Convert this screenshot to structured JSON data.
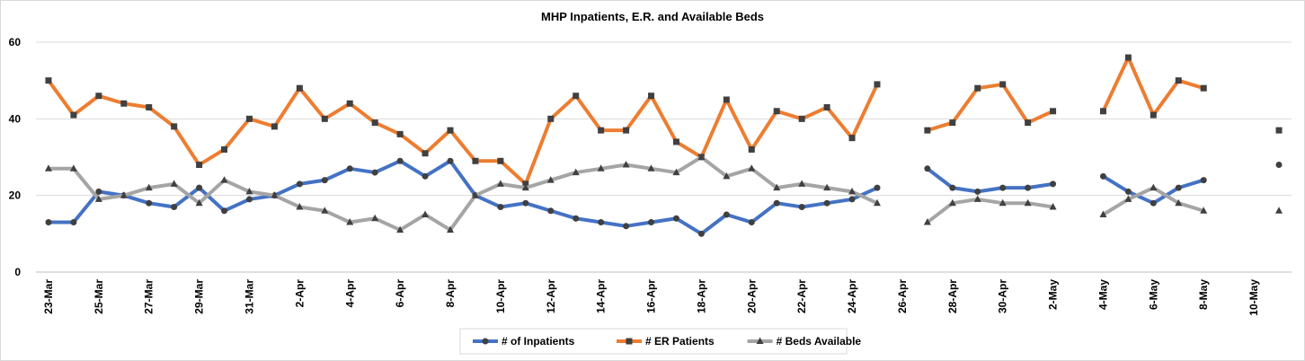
{
  "chart_data": {
    "type": "line",
    "title": "MHP Inpatients, E.R. and Available Beds",
    "xlabel": "",
    "ylabel": "",
    "ylim": [
      0,
      60
    ],
    "yticks": [
      "0",
      "20",
      "40",
      "60"
    ],
    "grid": true,
    "legend_position": "bottom",
    "tick_labels": [
      "23-Mar",
      "25-Mar",
      "27-Mar",
      "29-Mar",
      "31-Mar",
      "2-Apr",
      "4-Apr",
      "6-Apr",
      "8-Apr",
      "10-Apr",
      "12-Apr",
      "14-Apr",
      "16-Apr",
      "18-Apr",
      "20-Apr",
      "22-Apr",
      "24-Apr",
      "26-Apr",
      "28-Apr",
      "30-Apr",
      "2-May",
      "4-May",
      "6-May",
      "8-May",
      "10-May"
    ],
    "categories": [
      "23-Mar",
      "24-Mar",
      "25-Mar",
      "26-Mar",
      "27-Mar",
      "28-Mar",
      "29-Mar",
      "30-Mar",
      "31-Mar",
      "1-Apr",
      "2-Apr",
      "3-Apr",
      "4-Apr",
      "5-Apr",
      "6-Apr",
      "7-Apr",
      "8-Apr",
      "9-Apr",
      "10-Apr",
      "11-Apr",
      "12-Apr",
      "13-Apr",
      "14-Apr",
      "15-Apr",
      "16-Apr",
      "17-Apr",
      "18-Apr",
      "19-Apr",
      "20-Apr",
      "21-Apr",
      "22-Apr",
      "23-Apr",
      "24-Apr",
      "25-Apr",
      "26-Apr",
      "27-Apr",
      "28-Apr",
      "29-Apr",
      "30-Apr",
      "1-May",
      "2-May",
      "3-May",
      "4-May",
      "5-May",
      "6-May",
      "7-May",
      "8-May",
      "9-May",
      "10-May",
      "11-May"
    ],
    "series": [
      {
        "name": "# of Inpatients",
        "color": "#4472c4",
        "marker": "circle",
        "values": [
          13,
          13,
          21,
          20,
          18,
          17,
          22,
          16,
          19,
          20,
          23,
          24,
          27,
          26,
          29,
          25,
          29,
          20,
          17,
          18,
          16,
          14,
          13,
          12,
          13,
          14,
          10,
          15,
          13,
          18,
          17,
          18,
          19,
          22,
          null,
          27,
          22,
          21,
          22,
          22,
          23,
          null,
          25,
          21,
          18,
          22,
          24,
          null,
          null,
          28
        ]
      },
      {
        "name": "# ER Patients",
        "color": "#ed7d31",
        "marker": "square",
        "values": [
          50,
          41,
          46,
          44,
          43,
          38,
          28,
          32,
          40,
          38,
          48,
          40,
          44,
          39,
          36,
          31,
          37,
          29,
          29,
          23,
          40,
          46,
          37,
          37,
          46,
          34,
          30,
          45,
          32,
          42,
          40,
          43,
          35,
          49,
          null,
          37,
          39,
          48,
          49,
          39,
          42,
          null,
          42,
          56,
          41,
          50,
          48,
          null,
          null,
          37
        ]
      },
      {
        "name": "# Beds Available",
        "color": "#a5a5a5",
        "marker": "triangle",
        "values": [
          27,
          27,
          19,
          20,
          22,
          23,
          18,
          24,
          21,
          20,
          17,
          16,
          13,
          14,
          11,
          15,
          11,
          20,
          23,
          22,
          24,
          26,
          27,
          28,
          27,
          26,
          30,
          25,
          27,
          22,
          23,
          22,
          21,
          18,
          null,
          13,
          18,
          19,
          18,
          18,
          17,
          null,
          15,
          19,
          22,
          18,
          16,
          null,
          null,
          16
        ]
      }
    ]
  }
}
